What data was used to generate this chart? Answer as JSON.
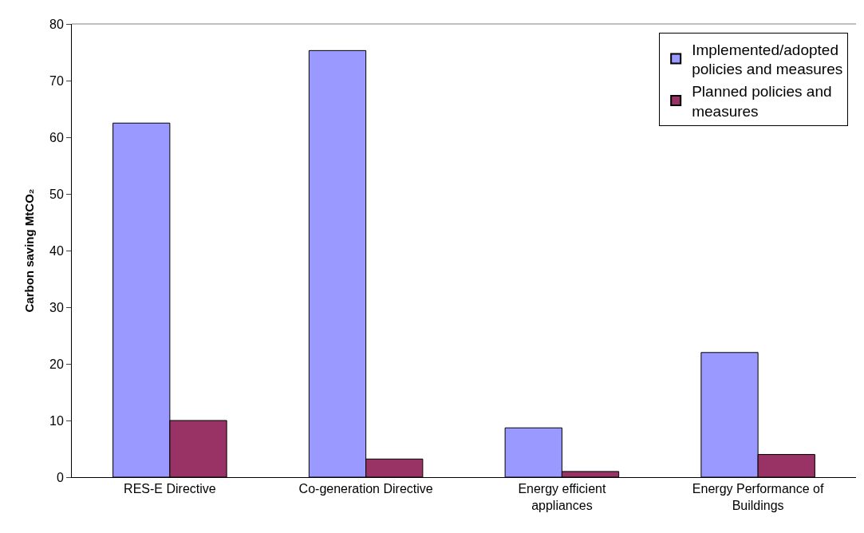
{
  "chart_data": {
    "type": "bar",
    "ylabel": "Carbon saving MtCO₂",
    "categories": [
      "RES-E Directive",
      "Co-generation Directive",
      "Energy efficient appliances",
      "Energy Performance of Buildings"
    ],
    "series": [
      {
        "name": "Implemented/adopted policies and measures",
        "color": "#9999ff",
        "values": [
          62.5,
          75.3,
          8.7,
          22.0
        ]
      },
      {
        "name": "Planned policies and measures",
        "color": "#993366",
        "values": [
          10.0,
          3.2,
          1.0,
          4.0
        ]
      }
    ],
    "ylim": [
      0,
      80
    ],
    "yticks": [
      0,
      10,
      20,
      30,
      40,
      50,
      60,
      70,
      80
    ],
    "grid": false,
    "legend": "top right"
  }
}
